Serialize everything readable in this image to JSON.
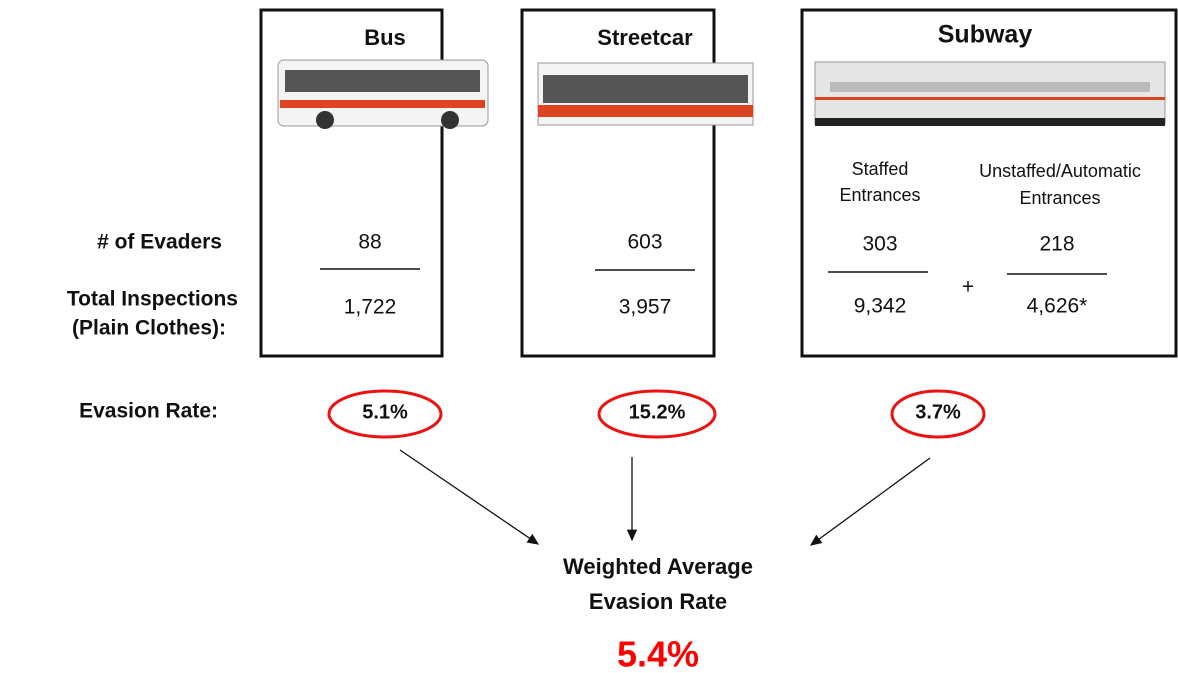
{
  "row_labels": {
    "evaders": "# of Evaders",
    "inspections": [
      "Total Inspections",
      "(Plain Clothes):"
    ],
    "rate": "Evasion Rate:"
  },
  "modes": [
    {
      "title": "Bus",
      "evaders": "88",
      "inspections": "1,722",
      "rate": "5.1%"
    },
    {
      "title": "Streetcar",
      "evaders": "603",
      "inspections": "3,957",
      "rate": "15.2%"
    },
    {
      "title": "Subway",
      "columns": [
        {
          "label": [
            "Staffed",
            "Entrances"
          ],
          "evaders": "303",
          "inspections": "9,342"
        },
        {
          "label": [
            "Unstaffed/Automatic",
            "Entrances"
          ],
          "evaders": "218",
          "inspections": "4,626*"
        }
      ],
      "operator": "+",
      "rate": "3.7%"
    }
  ],
  "result": {
    "label": [
      "Weighted Average",
      "Evasion Rate"
    ],
    "value": "5.4%"
  }
}
